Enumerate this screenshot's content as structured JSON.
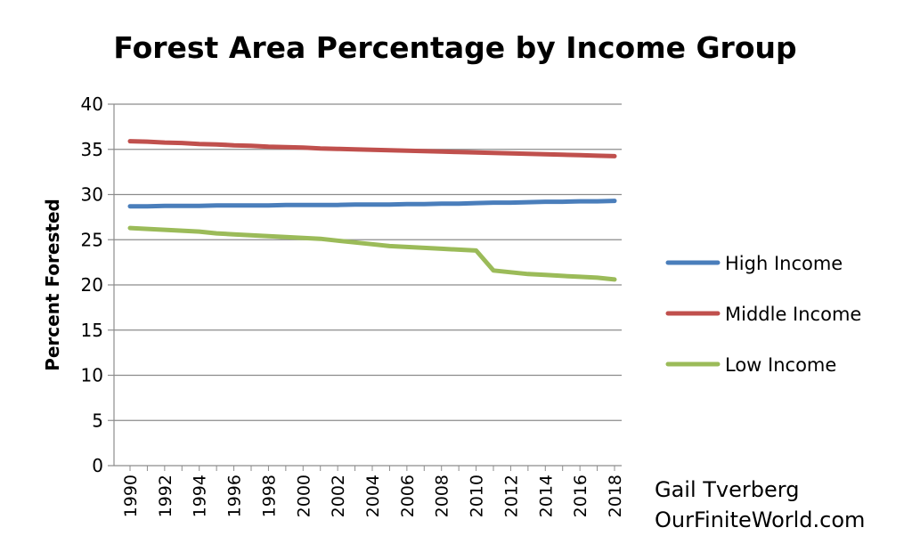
{
  "chart_data": {
    "type": "line",
    "title": "Forest Area Percentage by Income Group",
    "xlabel": "",
    "ylabel": "Percent Forested",
    "ylim": [
      0,
      40
    ],
    "yticks": [
      0,
      5,
      10,
      15,
      20,
      25,
      30,
      35,
      40
    ],
    "x": [
      1990,
      1991,
      1992,
      1993,
      1994,
      1995,
      1996,
      1997,
      1998,
      1999,
      2000,
      2001,
      2002,
      2003,
      2004,
      2005,
      2006,
      2007,
      2008,
      2009,
      2010,
      2011,
      2012,
      2013,
      2014,
      2015,
      2016,
      2017,
      2018
    ],
    "xtick_labels": [
      "1990",
      "1992",
      "1994",
      "1996",
      "1998",
      "2000",
      "2002",
      "2004",
      "2006",
      "2008",
      "2010",
      "2012",
      "2014",
      "2016",
      "2018"
    ],
    "grid": true,
    "legend_position": "right",
    "series": [
      {
        "name": "High Income",
        "color": "#4a7ebb",
        "values": [
          28.7,
          28.7,
          28.75,
          28.75,
          28.75,
          28.8,
          28.8,
          28.8,
          28.8,
          28.85,
          28.85,
          28.85,
          28.85,
          28.9,
          28.9,
          28.9,
          28.95,
          28.95,
          29.0,
          29.0,
          29.05,
          29.1,
          29.1,
          29.15,
          29.2,
          29.2,
          29.25,
          29.25,
          29.3
        ]
      },
      {
        "name": "Middle Income",
        "color": "#c0504d",
        "values": [
          35.9,
          35.85,
          35.75,
          35.7,
          35.6,
          35.55,
          35.45,
          35.4,
          35.3,
          35.25,
          35.2,
          35.1,
          35.05,
          35.0,
          34.95,
          34.9,
          34.85,
          34.8,
          34.75,
          34.7,
          34.65,
          34.6,
          34.55,
          34.5,
          34.45,
          34.4,
          34.35,
          34.3,
          34.25
        ]
      },
      {
        "name": "Low Income",
        "color": "#9bbb59",
        "values": [
          26.3,
          26.2,
          26.1,
          26.0,
          25.9,
          25.7,
          25.6,
          25.5,
          25.4,
          25.3,
          25.2,
          25.1,
          24.9,
          24.7,
          24.5,
          24.3,
          24.2,
          24.1,
          24.0,
          23.9,
          23.8,
          21.6,
          21.4,
          21.2,
          21.1,
          21.0,
          20.9,
          20.8,
          20.6
        ]
      }
    ]
  },
  "credit": {
    "author": "Gail Tverberg",
    "site": "OurFiniteWorld.com"
  }
}
